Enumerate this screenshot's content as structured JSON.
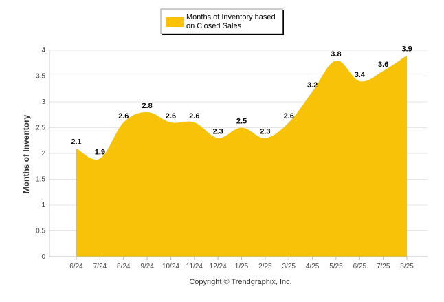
{
  "chart_data": {
    "type": "area",
    "categories": [
      "6/24",
      "7/24",
      "8/24",
      "9/24",
      "10/24",
      "11/24",
      "12/24",
      "1/25",
      "2/25",
      "3/25",
      "4/25",
      "5/25",
      "6/25",
      "7/25",
      "8/25"
    ],
    "series": [
      {
        "name": "Months of Inventory based on Closed Sales",
        "values": [
          2.1,
          1.9,
          2.6,
          2.8,
          2.6,
          2.6,
          2.3,
          2.5,
          2.3,
          2.6,
          3.2,
          3.8,
          3.4,
          3.6,
          3.9
        ]
      }
    ],
    "legend_lines": [
      "Months of Inventory based",
      "on Closed Sales"
    ],
    "ylabel": "Months of Inventory",
    "xlabel": "",
    "ylim": [
      0,
      4
    ],
    "yticks": [
      "0",
      "0.5",
      "1",
      "1.5",
      "2",
      "2.5",
      "3",
      "3.5",
      "4"
    ],
    "grid": true,
    "legend_position": "top-center",
    "color": "#f7c208",
    "footer": "Copyright © Trendgraphix, Inc."
  }
}
